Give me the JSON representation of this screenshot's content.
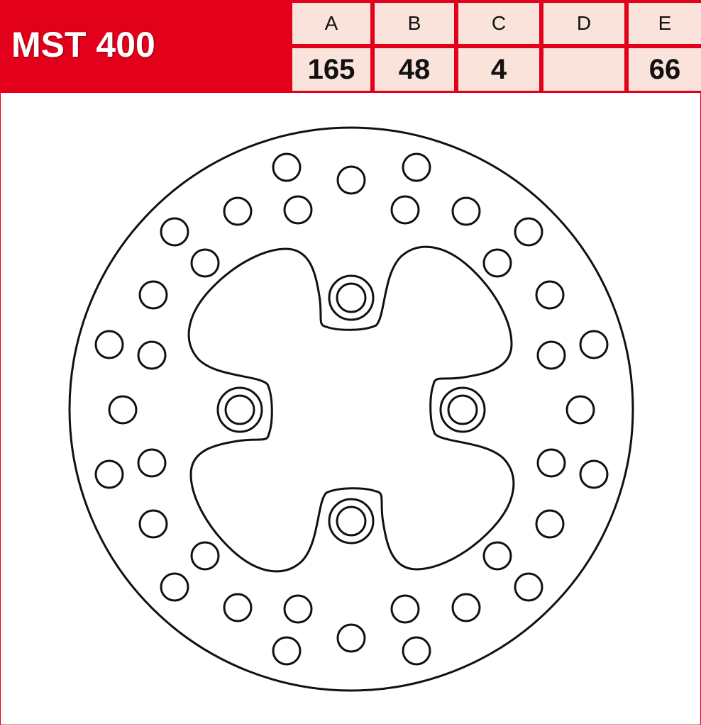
{
  "title": "MST 400",
  "spec_table": {
    "columns": [
      "A",
      "B",
      "C",
      "D",
      "E"
    ],
    "values": [
      "165",
      "48",
      "4",
      "",
      "66"
    ]
  },
  "colors": {
    "brand_red": "#e2001a",
    "cell_bg": "#f9e3da",
    "line": "#111111"
  },
  "diagram": {
    "subject": "brake disc outline",
    "bolt_holes": 4,
    "vent_holes": 36
  }
}
